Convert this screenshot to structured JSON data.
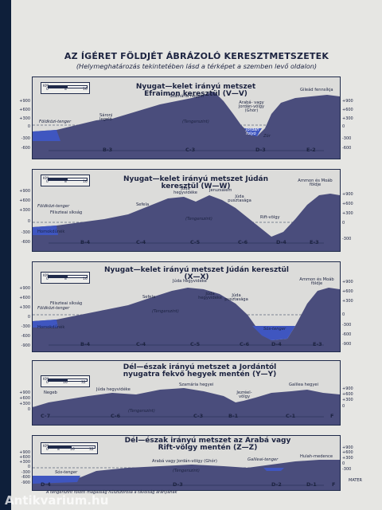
{
  "title": "AZ ÍGÉRET FÖLDJÉT ÁBRÁZOLÓ KERESZTMETSZETEK",
  "subtitle": "(Helymeghatározás tekintetében lásd a térképet a szemben levő oldalon)",
  "colors": {
    "terrain": "#4a4d7c",
    "water": "#3f56c0",
    "frame": "#1f2a4a",
    "sky": "#dcdcda"
  },
  "panels": [
    {
      "title": "Nyugat—kelet irányú metszet Efraimon keresztül (V—V)",
      "scale": {
        "unit": "KM",
        "ticks": [
          "0",
          "8",
          "16"
        ]
      },
      "labels": [
        "Sároni legelő",
        "Szamária hegyei",
        "Arabá- vagy Jordán-völgy (Ghór)",
        "Gileád fennsíkja"
      ],
      "water": [
        "Földközi-tenger",
        "Jordán folyó",
        "Zór"
      ],
      "sea_level": "(Tengerszint)",
      "left_ticks": [
        "+900",
        "+600",
        "+300",
        "0",
        "-300",
        "-600"
      ],
      "right_ticks": [
        "+900",
        "+600",
        "+300",
        "0",
        "-300",
        "-600"
      ],
      "zones": [
        "B-3",
        "C-3",
        "D-3",
        "E-2"
      ]
    },
    {
      "title": "Nyugat—kelet irányú metszet Júdán keresztül (W—W)",
      "scale": {
        "unit": "KM",
        "ticks": [
          "0",
          "8",
          "16"
        ]
      },
      "labels": [
        "Filiszteai síkság",
        "Sefela",
        "Júda hegyvidéke",
        "Jeruzsálem",
        "Júda pusztasága",
        "Rift-völgy",
        "Ammon és Moáb földje",
        "Homokdűnék"
      ],
      "water": [
        "Földközi-tenger"
      ],
      "sea_level": "(Tengerszint)",
      "left_ticks": [
        "+900",
        "+600",
        "+300",
        "0",
        "-300",
        "-600"
      ],
      "right_ticks": [
        "+900",
        "+600",
        "+300",
        "0",
        "-300"
      ],
      "zones": [
        "B-4",
        "C-4",
        "C-5",
        "C-6",
        "D-4",
        "E-3"
      ]
    },
    {
      "title": "Nyugat—kelet irányú metszet Júdán keresztül (X—X)",
      "scale": {
        "unit": "KM",
        "ticks": [
          "0",
          "8",
          "16"
        ]
      },
      "labels": [
        "Filiszteai síkság",
        "Sefela",
        "Júda hegyvidéke",
        "Júda hegyvidéke",
        "Júda pusztasága",
        "Ammon és Moáb földje",
        "Homokdűnék"
      ],
      "water": [
        "Földközi-tenger",
        "Sós-tenger"
      ],
      "sea_level": "(Tengerszint)",
      "left_ticks": [
        "+900",
        "+600",
        "+300",
        "0",
        "-300",
        "-600",
        "-900"
      ],
      "right_ticks": [
        "+900",
        "+600",
        "+300",
        "0",
        "-300",
        "-600",
        "-900"
      ],
      "zones": [
        "B-4",
        "C-4",
        "C-5",
        "C-6",
        "D-4",
        "E-3"
      ]
    },
    {
      "title": "Dél—észak irányú metszet a Jordántól nyugatra fekvő hegyek mentén (Y—Y)",
      "scale": {
        "unit": "KM",
        "ticks": [
          "0",
          "16",
          "32"
        ]
      },
      "labels": [
        "Negeb",
        "Júda hegyvidéke",
        "Szamária hegyei",
        "Jezréel-völgy",
        "Galilea hegyei"
      ],
      "water": [],
      "sea_level": "(Tengerszint)",
      "left_ticks": [
        "+900",
        "+600",
        "+300",
        "0"
      ],
      "right_ticks": [
        "+900",
        "+600",
        "+300",
        "0"
      ],
      "zones": [
        "C-7",
        "C-6",
        "C-3",
        "B-1",
        "C-1",
        "F"
      ]
    },
    {
      "title": "Dél—észak irányú metszet az Arabá vagy Rift-völgy mentén (Z—Z)",
      "scale": {
        "unit": "KM",
        "ticks": [
          "0",
          "8",
          "16",
          "32"
        ]
      },
      "labels": [
        "Arabá vagy Jordán-völgy (Ghór)",
        "Hulah-medence"
      ],
      "water": [
        "Sós-tenger",
        "Galileai-tenger"
      ],
      "sea_level": "(Tengerszint)",
      "left_ticks": [
        "+900",
        "+600",
        "+300",
        "0",
        "-300",
        "-600",
        "-900"
      ],
      "right_ticks": [
        "+900",
        "+600",
        "+300",
        "0",
        "-300"
      ],
      "zones": [
        "D-4",
        "D-3",
        "D-2",
        "D-1",
        "F"
      ]
    }
  ],
  "footnote": "A tengerszínt fölötti magasság húszszorosa a távolság arányának",
  "credit": "MATER",
  "watermark": "Antikvarium.hu"
}
